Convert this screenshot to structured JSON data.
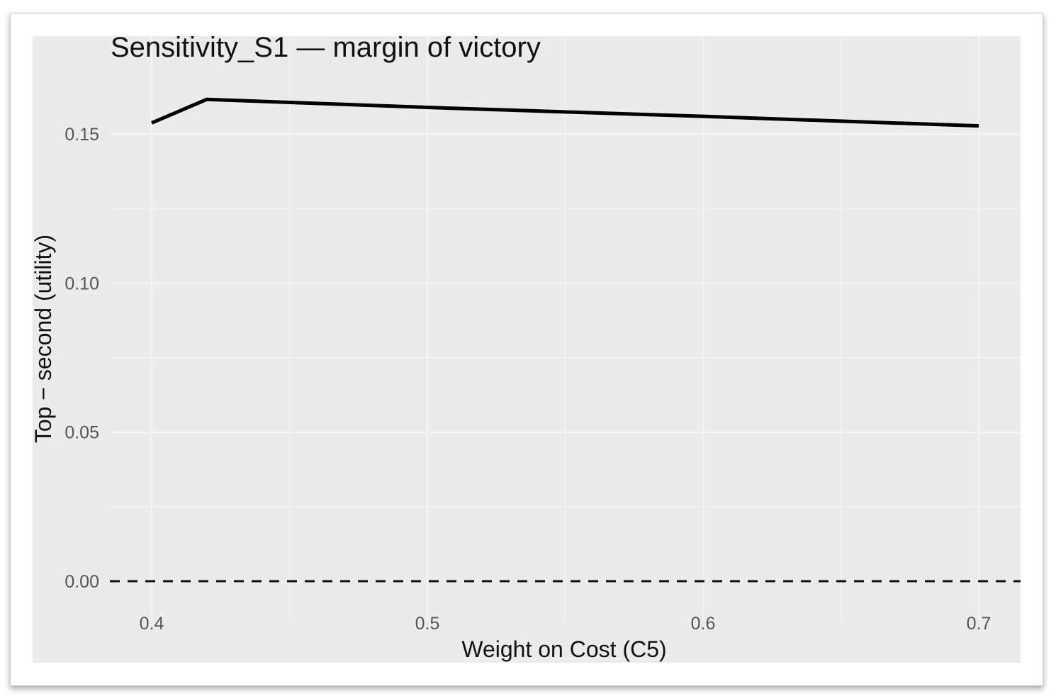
{
  "chart_data": {
    "type": "line",
    "title": "Sensitivity_S1 — margin of victory",
    "xlabel": "Weight on Cost (C5)",
    "ylabel": "Top − second (utility)",
    "xlim": [
      0.385,
      0.715
    ],
    "ylim": [
      -0.008,
      0.165
    ],
    "x_ticks": [
      0.4,
      0.5,
      0.6,
      0.7
    ],
    "x_tick_labels": [
      "0.4",
      "0.5",
      "0.6",
      "0.7"
    ],
    "y_ticks": [
      0.0,
      0.05,
      0.1,
      0.15
    ],
    "y_tick_labels": [
      "0.00",
      "0.05",
      "0.10",
      "0.15"
    ],
    "grid": true,
    "reference_line": {
      "y": 0.0,
      "style": "dashed"
    },
    "series": [
      {
        "x": [
          0.4,
          0.42,
          0.5,
          0.6,
          0.7
        ],
        "values": [
          0.1537,
          0.1616,
          0.1589,
          0.1559,
          0.1527
        ]
      }
    ],
    "colors": {
      "panel": "#ebebeb",
      "grid": "#f5f5f5",
      "line": "#000000"
    }
  }
}
